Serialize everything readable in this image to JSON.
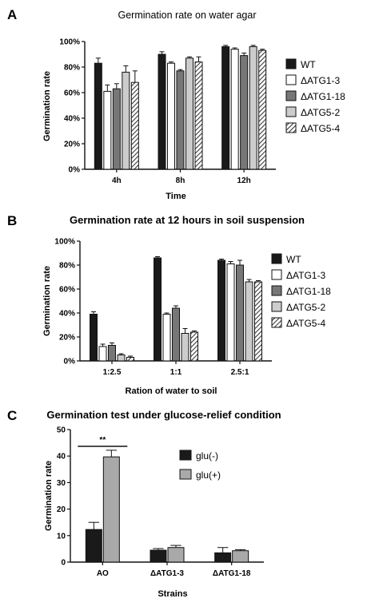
{
  "chart_data": [
    {
      "panel": "A",
      "type": "bar",
      "title": "Germination rate on water agar",
      "xlabel": "Time",
      "ylabel": "Germination rate",
      "ylim": [
        0,
        100
      ],
      "yticks": [
        "0%",
        "20%",
        "40%",
        "60%",
        "80%",
        "100%"
      ],
      "categories": [
        "4h",
        "8h",
        "12h"
      ],
      "legend": "right",
      "series": [
        {
          "name": "WT",
          "values": [
            83,
            90,
            96
          ],
          "errors": [
            4,
            2,
            1
          ],
          "fill": "solid",
          "color": "#1a1a1a"
        },
        {
          "name": "ΔATG1-3",
          "values": [
            61,
            83,
            94
          ],
          "errors": [
            5,
            1,
            1
          ],
          "fill": "white",
          "color": "#ffffff"
        },
        {
          "name": "ΔATG1-18",
          "values": [
            63,
            77,
            89
          ],
          "errors": [
            4,
            1,
            2
          ],
          "fill": "solid",
          "color": "#777777"
        },
        {
          "name": "ΔATG5-2",
          "values": [
            76,
            87,
            96
          ],
          "errors": [
            5,
            1,
            1
          ],
          "fill": "solid",
          "color": "#cccccc"
        },
        {
          "name": "ΔATG5-4",
          "values": [
            68,
            84,
            93
          ],
          "errors": [
            9,
            4,
            1
          ],
          "fill": "hatch",
          "color": "#555555"
        }
      ]
    },
    {
      "panel": "B",
      "type": "bar",
      "title": "Germination rate at 12 hours in soil suspension",
      "xlabel": "Ration of water to soil",
      "ylabel": "Germination rate",
      "ylim": [
        0,
        100
      ],
      "yticks": [
        "0%",
        "20%",
        "40%",
        "60%",
        "80%",
        "100%"
      ],
      "categories": [
        "1:2.5",
        "1:1",
        "2.5:1"
      ],
      "legend": "right",
      "series": [
        {
          "name": "WT",
          "values": [
            39,
            86,
            84
          ],
          "errors": [
            2,
            1,
            1
          ],
          "fill": "solid",
          "color": "#1a1a1a"
        },
        {
          "name": "ΔATG1-3",
          "values": [
            12,
            39,
            81
          ],
          "errors": [
            2,
            1,
            2
          ],
          "fill": "white",
          "color": "#ffffff"
        },
        {
          "name": "ΔATG1-18",
          "values": [
            13,
            44,
            80
          ],
          "errors": [
            2,
            2,
            4
          ],
          "fill": "solid",
          "color": "#777777"
        },
        {
          "name": "ΔATG5-2",
          "values": [
            5,
            23,
            66
          ],
          "errors": [
            1,
            4,
            2
          ],
          "fill": "solid",
          "color": "#cccccc"
        },
        {
          "name": "ΔATG5-4",
          "values": [
            3,
            24,
            66
          ],
          "errors": [
            1,
            1,
            1
          ],
          "fill": "hatch",
          "color": "#555555"
        }
      ]
    },
    {
      "panel": "C",
      "type": "bar",
      "title": "Germination test under glucose-relief condition",
      "xlabel": "Strains",
      "ylabel": "Germination rate",
      "ylim": [
        0,
        50
      ],
      "yticks": [
        "0",
        "10",
        "20",
        "30",
        "40",
        "50"
      ],
      "categories": [
        "AO",
        "ΔATG1-3",
        "ΔATG1-18"
      ],
      "legend": "right",
      "significance": {
        "label": "**",
        "group": "AO"
      },
      "series": [
        {
          "name": "glu(-)",
          "values": [
            12.3,
            4.5,
            3.5
          ],
          "errors": [
            2.7,
            0.6,
            2.0
          ],
          "fill": "solid",
          "color": "#1a1a1a"
        },
        {
          "name": "glu(+)",
          "values": [
            39.7,
            5.5,
            4.3
          ],
          "errors": [
            2.5,
            0.8,
            0.4
          ],
          "fill": "solid",
          "color": "#a9a9a9"
        }
      ]
    }
  ]
}
